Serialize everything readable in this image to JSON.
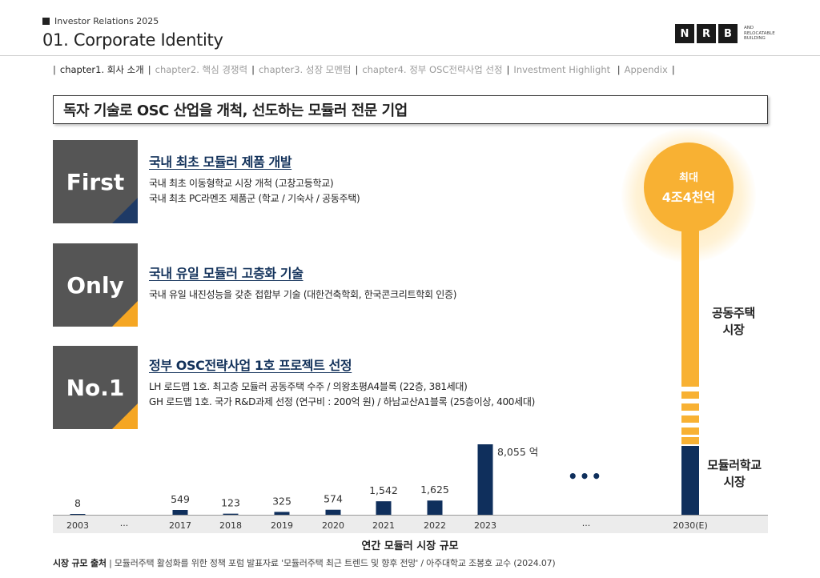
{
  "header": {
    "label": "Investor Relations 2025",
    "title": "01. Corporate Identity",
    "logo_letters": [
      "N",
      "R",
      "B"
    ],
    "logo_sub": [
      "AND",
      "RELOCATABLE",
      "BUILDING"
    ]
  },
  "nav": {
    "items": [
      {
        "label": "chapter1. 회사 소개",
        "active": true
      },
      {
        "label": "chapter2. 핵심 경쟁력",
        "active": false
      },
      {
        "label": "chapter3. 성장 모멘텀",
        "active": false
      },
      {
        "label": "chapter4. 정부 OSC전략사업 선정",
        "active": false
      },
      {
        "label": "Investment Highlight",
        "active": false
      },
      {
        "label": "Appendix",
        "active": false
      }
    ]
  },
  "headline": "독자 기술로 OSC 산업을 개척, 선도하는 모듈러 전문 기업",
  "features": [
    {
      "badge": "First",
      "title": "국내 최초 모듈러 제품 개발",
      "lines": [
        "국내 최초 이동형학교 시장 개척 (고창고등학교)",
        "국내 최초 PC라멘조 제품군 (학교 / 기숙사 / 공동주택)"
      ]
    },
    {
      "badge": "Only",
      "title": "국내 유일 모듈러 고층화 기술",
      "lines": [
        "국내 유일 내진성능을 갖춘 접합부 기술 (대한건축학회, 한국콘크리트학회 인증)"
      ]
    },
    {
      "badge": "No.1",
      "title": "정부 OSC전략사업 1호 프로젝트 선정",
      "lines": [
        "LH 로드맵 1호. 최고층 모듈러 공동주택 수주 / 의왕초평A4블록 (22층, 381세대)",
        "GH 로드맵 1호. 국가 R&D과제 선정 (연구비 : 200억 원) / 하남교산A1블록 (25층이상, 400세대)"
      ]
    }
  ],
  "projection": {
    "line1": "최대",
    "line2": "4조4천억",
    "label_upper": [
      "공동주택",
      "시장"
    ],
    "label_lower": [
      "모듈러학교",
      "시장"
    ]
  },
  "chart_data": {
    "type": "bar",
    "title": "연간 모듈러 시장 규모",
    "categories": [
      "2003",
      "···",
      "2017",
      "2018",
      "2019",
      "2020",
      "2021",
      "2022",
      "2023",
      "···",
      "2030(E)"
    ],
    "values": [
      8,
      null,
      549,
      123,
      325,
      574,
      1542,
      1625,
      8055,
      null,
      null
    ],
    "data_labels": [
      "8",
      "",
      "549",
      "123",
      "325",
      "574",
      "1,542",
      "1,625",
      "8,055 억",
      "",
      ""
    ],
    "ellipsis": "•••",
    "unit": "억",
    "colors": {
      "bar": "#0f2f5c",
      "accent": "#f8b133"
    }
  },
  "source": {
    "label": "시장 규모 출처",
    "text": "| 모듈러주택 활성화를 위한 정책 포럼 발표자료 '모듈러주택 최근 트렌드 및 향후 전망' / 아주대학교 조봉호 교수 (2024.07)"
  }
}
